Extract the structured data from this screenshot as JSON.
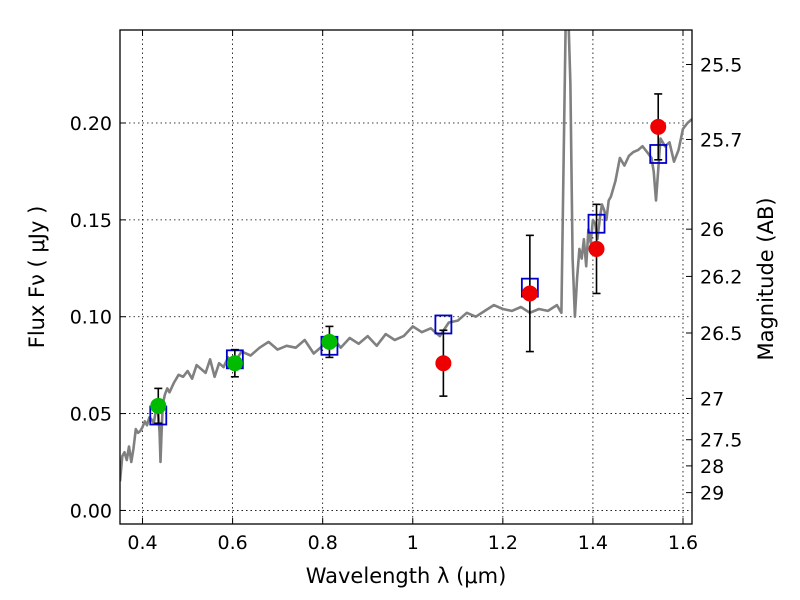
{
  "chart_data": {
    "type": "scatter",
    "xlabel": "Wavelength  λ (μm)",
    "ylabel": "Flux  Fν  ( μJy )",
    "y2label": "Magnitude (AB)",
    "xlim": [
      0.35,
      1.62
    ],
    "ylim": [
      -0.007,
      0.248
    ],
    "grid": true,
    "x_ticks": [
      0.4,
      0.6,
      0.8,
      1.0,
      1.2,
      1.4,
      1.6
    ],
    "x_tick_labels": [
      "0.4",
      "0.6",
      "0.8",
      "1",
      "1.2",
      "1.4",
      "1.6"
    ],
    "y_ticks": [
      0.0,
      0.05,
      0.1,
      0.15,
      0.2
    ],
    "y_tick_labels": [
      "0.00",
      "0.05",
      "0.10",
      "0.15",
      "0.20"
    ],
    "right_axis_ticks": [
      {
        "label": "25.5",
        "flux": 0.2302
      },
      {
        "label": "25.7",
        "flux": 0.1915
      },
      {
        "label": "26",
        "flux": 0.1452
      },
      {
        "label": "26.2",
        "flux": 0.1208
      },
      {
        "label": "26.5",
        "flux": 0.0916
      },
      {
        "label": "27",
        "flux": 0.0578
      },
      {
        "label": "27.5",
        "flux": 0.0365
      },
      {
        "label": "28",
        "flux": 0.023
      },
      {
        "label": "29",
        "flux": 0.0092
      }
    ],
    "colors": {
      "model": "#808080",
      "green": "#00bb00",
      "red": "#ee0000",
      "square": "#0000cc",
      "errorbar": "#000000"
    },
    "model_spectrum": {
      "x": [
        0.35,
        0.355,
        0.36,
        0.365,
        0.37,
        0.375,
        0.38,
        0.385,
        0.39,
        0.395,
        0.4,
        0.405,
        0.41,
        0.415,
        0.42,
        0.425,
        0.43,
        0.435,
        0.438,
        0.44,
        0.442,
        0.445,
        0.45,
        0.455,
        0.46,
        0.47,
        0.48,
        0.49,
        0.5,
        0.51,
        0.52,
        0.53,
        0.54,
        0.55,
        0.56,
        0.57,
        0.58,
        0.59,
        0.6,
        0.62,
        0.64,
        0.66,
        0.68,
        0.7,
        0.72,
        0.74,
        0.76,
        0.78,
        0.8,
        0.82,
        0.84,
        0.86,
        0.88,
        0.9,
        0.92,
        0.94,
        0.96,
        0.98,
        1.0,
        1.02,
        1.04,
        1.06,
        1.08,
        1.1,
        1.12,
        1.14,
        1.16,
        1.18,
        1.2,
        1.22,
        1.24,
        1.26,
        1.28,
        1.3,
        1.32,
        1.33,
        1.335,
        1.34,
        1.345,
        1.35,
        1.355,
        1.36,
        1.365,
        1.37,
        1.375,
        1.38,
        1.385,
        1.39,
        1.395,
        1.4,
        1.405,
        1.41,
        1.415,
        1.42,
        1.425,
        1.43,
        1.435,
        1.44,
        1.45,
        1.46,
        1.47,
        1.48,
        1.49,
        1.5,
        1.51,
        1.52,
        1.53,
        1.535,
        1.54,
        1.55,
        1.56,
        1.57,
        1.58,
        1.59,
        1.6,
        1.61,
        1.62
      ],
      "y": [
        0.015,
        0.028,
        0.03,
        0.026,
        0.033,
        0.025,
        0.032,
        0.042,
        0.04,
        0.041,
        0.043,
        0.046,
        0.044,
        0.048,
        0.047,
        0.045,
        0.052,
        0.05,
        0.04,
        0.025,
        0.038,
        0.055,
        0.06,
        0.063,
        0.061,
        0.066,
        0.07,
        0.069,
        0.072,
        0.068,
        0.075,
        0.073,
        0.071,
        0.078,
        0.069,
        0.076,
        0.074,
        0.079,
        0.075,
        0.082,
        0.08,
        0.084,
        0.087,
        0.083,
        0.085,
        0.084,
        0.088,
        0.081,
        0.085,
        0.09,
        0.084,
        0.089,
        0.086,
        0.09,
        0.085,
        0.091,
        0.088,
        0.09,
        0.095,
        0.092,
        0.094,
        0.09,
        0.097,
        0.098,
        0.102,
        0.1,
        0.103,
        0.106,
        0.104,
        0.103,
        0.105,
        0.102,
        0.104,
        0.103,
        0.106,
        0.102,
        0.18,
        0.26,
        0.26,
        0.22,
        0.13,
        0.1,
        0.12,
        0.135,
        0.13,
        0.14,
        0.126,
        0.145,
        0.138,
        0.15,
        0.148,
        0.14,
        0.15,
        0.158,
        0.155,
        0.15,
        0.16,
        0.162,
        0.17,
        0.182,
        0.178,
        0.183,
        0.185,
        0.186,
        0.188,
        0.185,
        0.182,
        0.175,
        0.16,
        0.192,
        0.188,
        0.19,
        0.18,
        0.186,
        0.197,
        0.2,
        0.202
      ]
    },
    "series": [
      {
        "marker": "circle",
        "color": "green",
        "points": [
          {
            "x": 0.435,
            "y": 0.054,
            "err": 0.009
          },
          {
            "x": 0.605,
            "y": 0.076,
            "err": 0.007
          },
          {
            "x": 0.815,
            "y": 0.087,
            "err": 0.008
          }
        ]
      },
      {
        "marker": "circle",
        "color": "red",
        "points": [
          {
            "x": 1.068,
            "y": 0.076,
            "err": 0.017
          },
          {
            "x": 1.26,
            "y": 0.112,
            "err": 0.03
          },
          {
            "x": 1.408,
            "y": 0.135,
            "err": 0.023
          },
          {
            "x": 1.545,
            "y": 0.198,
            "err": 0.017
          }
        ]
      },
      {
        "marker": "open-square",
        "color": "blue",
        "points": [
          {
            "x": 0.435,
            "y": 0.049
          },
          {
            "x": 0.605,
            "y": 0.078
          },
          {
            "x": 0.815,
            "y": 0.085
          },
          {
            "x": 1.068,
            "y": 0.096
          },
          {
            "x": 1.26,
            "y": 0.115
          },
          {
            "x": 1.408,
            "y": 0.148
          },
          {
            "x": 1.545,
            "y": 0.184
          }
        ]
      }
    ]
  }
}
